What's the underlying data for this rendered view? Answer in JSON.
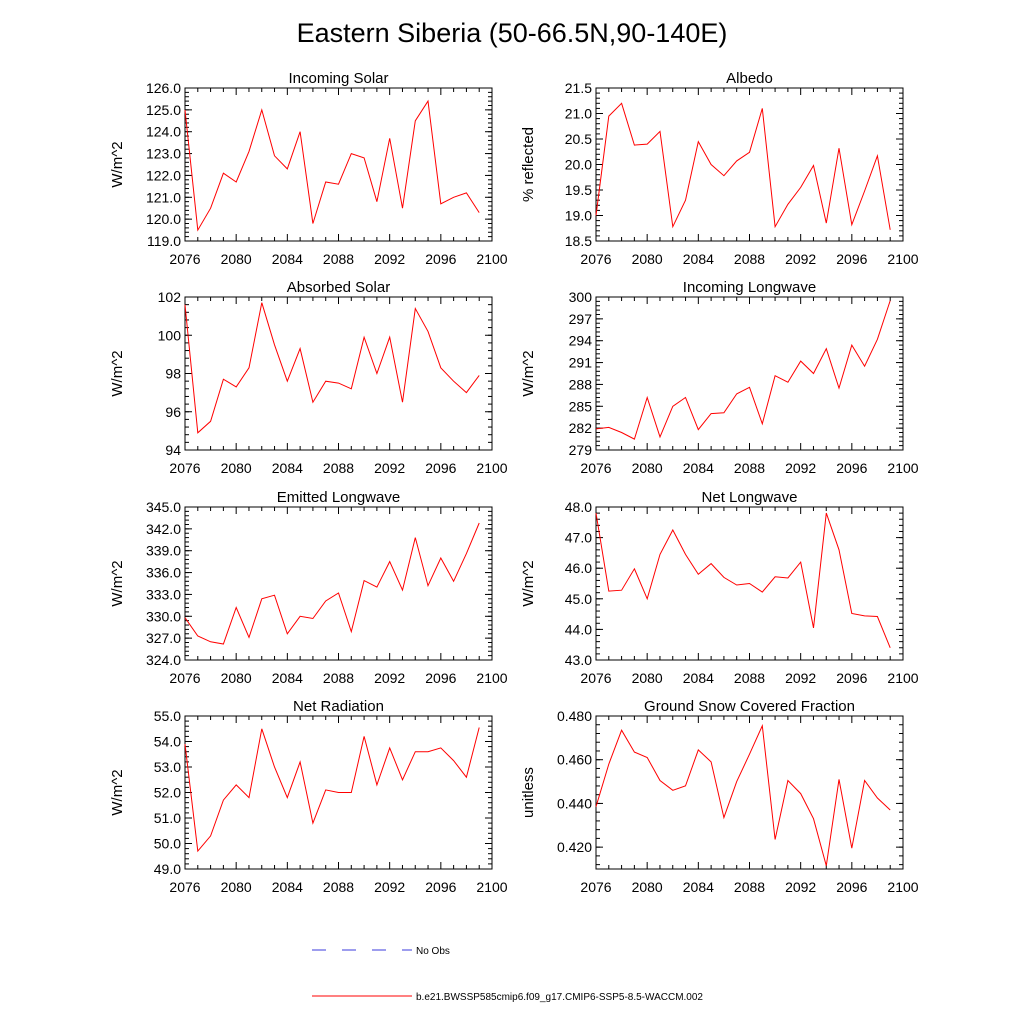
{
  "title": "Eastern Siberia (50-66.5N,90-140E)",
  "legend": {
    "entries": [
      {
        "label": "No Obs",
        "color": "#3b3bdc",
        "style": "dashed"
      },
      {
        "label": "b.e21.BWSSP585cmip6.f09_g17.CMIP6-SSP5-8.5-WACCM.002",
        "color": "#ff0000",
        "style": "solid"
      }
    ]
  },
  "chart_data": [
    {
      "type": "line",
      "title": "Incoming Solar",
      "ylabel": "W/m^2",
      "xlim": [
        2076,
        2100
      ],
      "ylim": [
        119.0,
        126.0
      ],
      "xticks": [
        "2076",
        "2080",
        "2084",
        "2088",
        "2092",
        "2096",
        "2100"
      ],
      "yticks": [
        "119.0",
        "120.0",
        "121.0",
        "122.0",
        "123.0",
        "124.0",
        "125.0",
        "126.0"
      ],
      "x": [
        2076,
        2077,
        2078,
        2079,
        2080,
        2081,
        2082,
        2083,
        2084,
        2085,
        2086,
        2087,
        2088,
        2089,
        2090,
        2091,
        2092,
        2093,
        2094,
        2095,
        2096,
        2097,
        2098,
        2099
      ],
      "series": [
        {
          "name": "b.e21.BWSSP585cmip6.f09_g17.CMIP6-SSP5-8.5-WACCM.002",
          "color": "#ff0000",
          "values": [
            125.0,
            119.5,
            120.5,
            122.1,
            121.7,
            123.1,
            125.0,
            122.9,
            122.3,
            124.0,
            119.8,
            121.7,
            121.6,
            123.0,
            122.8,
            120.8,
            123.7,
            120.5,
            124.5,
            125.4,
            120.7,
            121.0,
            121.2,
            120.3
          ]
        }
      ]
    },
    {
      "type": "line",
      "title": "Albedo",
      "ylabel": "% reflected",
      "xlim": [
        2076,
        2100
      ],
      "ylim": [
        18.5,
        21.5
      ],
      "xticks": [
        "2076",
        "2080",
        "2084",
        "2088",
        "2092",
        "2096",
        "2100"
      ],
      "yticks": [
        "18.5",
        "19.0",
        "19.5",
        "20.0",
        "20.5",
        "21.0",
        "21.5"
      ],
      "x": [
        2076,
        2077,
        2078,
        2079,
        2080,
        2081,
        2082,
        2083,
        2084,
        2085,
        2086,
        2087,
        2088,
        2089,
        2090,
        2091,
        2092,
        2093,
        2094,
        2095,
        2096,
        2097,
        2098,
        2099
      ],
      "series": [
        {
          "name": "b.e21.BWSSP585cmip6.f09_g17.CMIP6-SSP5-8.5-WACCM.002",
          "color": "#ff0000",
          "values": [
            19.0,
            20.95,
            21.2,
            20.38,
            20.4,
            20.65,
            18.78,
            19.3,
            20.45,
            20.0,
            19.78,
            20.07,
            20.24,
            21.1,
            18.78,
            19.22,
            19.55,
            19.98,
            18.85,
            20.32,
            18.82,
            19.48,
            20.17,
            18.72
          ]
        }
      ]
    },
    {
      "type": "line",
      "title": "Absorbed Solar",
      "ylabel": "W/m^2",
      "xlim": [
        2076,
        2100
      ],
      "ylim": [
        94,
        102
      ],
      "xticks": [
        "2076",
        "2080",
        "2084",
        "2088",
        "2092",
        "2096",
        "2100"
      ],
      "yticks": [
        "94",
        "96",
        "98",
        "100",
        "102"
      ],
      "x": [
        2076,
        2077,
        2078,
        2079,
        2080,
        2081,
        2082,
        2083,
        2084,
        2085,
        2086,
        2087,
        2088,
        2089,
        2090,
        2091,
        2092,
        2093,
        2094,
        2095,
        2096,
        2097,
        2098,
        2099
      ],
      "series": [
        {
          "name": "b.e21.BWSSP585cmip6.f09_g17.CMIP6-SSP5-8.5-WACCM.002",
          "color": "#ff0000",
          "values": [
            101.6,
            94.9,
            95.5,
            97.7,
            97.3,
            98.3,
            101.7,
            99.5,
            97.6,
            99.3,
            96.5,
            97.6,
            97.5,
            97.2,
            99.9,
            98.0,
            99.9,
            96.5,
            101.4,
            100.2,
            98.3,
            97.6,
            97.0,
            97.9
          ]
        }
      ]
    },
    {
      "type": "line",
      "title": "Incoming Longwave",
      "ylabel": "W/m^2",
      "xlim": [
        2076,
        2100
      ],
      "ylim": [
        279,
        300
      ],
      "xticks": [
        "2076",
        "2080",
        "2084",
        "2088",
        "2092",
        "2096",
        "2100"
      ],
      "yticks": [
        "279",
        "282",
        "285",
        "288",
        "291",
        "294",
        "297",
        "300"
      ],
      "x": [
        2076,
        2077,
        2078,
        2079,
        2080,
        2081,
        2082,
        2083,
        2084,
        2085,
        2086,
        2087,
        2088,
        2089,
        2090,
        2091,
        2092,
        2093,
        2094,
        2095,
        2096,
        2097,
        2098,
        2099
      ],
      "series": [
        {
          "name": "b.e21.BWSSP585cmip6.f09_g17.CMIP6-SSP5-8.5-WACCM.002",
          "color": "#ff0000",
          "values": [
            281.9,
            282.1,
            281.4,
            280.5,
            286.2,
            280.8,
            285.0,
            286.2,
            281.8,
            284.0,
            284.1,
            286.7,
            287.6,
            282.6,
            289.2,
            288.3,
            291.2,
            289.5,
            292.9,
            287.5,
            293.4,
            290.5,
            294.2,
            299.5
          ]
        }
      ]
    },
    {
      "type": "line",
      "title": "Emitted Longwave",
      "ylabel": "W/m^2",
      "xlim": [
        2076,
        2100
      ],
      "ylim": [
        324.0,
        345.0
      ],
      "xticks": [
        "2076",
        "2080",
        "2084",
        "2088",
        "2092",
        "2096",
        "2100"
      ],
      "yticks": [
        "324.0",
        "327.0",
        "330.0",
        "333.0",
        "336.0",
        "339.0",
        "342.0",
        "345.0"
      ],
      "x": [
        2076,
        2077,
        2078,
        2079,
        2080,
        2081,
        2082,
        2083,
        2084,
        2085,
        2086,
        2087,
        2088,
        2089,
        2090,
        2091,
        2092,
        2093,
        2094,
        2095,
        2096,
        2097,
        2098,
        2099
      ],
      "series": [
        {
          "name": "b.e21.BWSSP585cmip6.f09_g17.CMIP6-SSP5-8.5-WACCM.002",
          "color": "#ff0000",
          "values": [
            329.8,
            327.3,
            326.5,
            326.2,
            331.2,
            327.1,
            332.4,
            332.9,
            327.6,
            330.0,
            329.7,
            332.1,
            333.2,
            327.9,
            334.9,
            334.0,
            337.5,
            333.6,
            340.8,
            334.2,
            338.0,
            334.8,
            338.6,
            342.8
          ]
        }
      ]
    },
    {
      "type": "line",
      "title": "Net Longwave",
      "ylabel": "W/m^2",
      "xlim": [
        2076,
        2100
      ],
      "ylim": [
        43.0,
        48.0
      ],
      "xticks": [
        "2076",
        "2080",
        "2084",
        "2088",
        "2092",
        "2096",
        "2100"
      ],
      "yticks": [
        "43.0",
        "44.0",
        "45.0",
        "46.0",
        "47.0",
        "48.0"
      ],
      "x": [
        2076,
        2077,
        2078,
        2079,
        2080,
        2081,
        2082,
        2083,
        2084,
        2085,
        2086,
        2087,
        2088,
        2089,
        2090,
        2091,
        2092,
        2093,
        2094,
        2095,
        2096,
        2097,
        2098,
        2099
      ],
      "series": [
        {
          "name": "b.e21.BWSSP585cmip6.f09_g17.CMIP6-SSP5-8.5-WACCM.002",
          "color": "#ff0000",
          "values": [
            47.8,
            45.25,
            45.28,
            45.98,
            45.0,
            46.45,
            47.25,
            46.45,
            45.8,
            46.15,
            45.7,
            45.45,
            45.5,
            45.22,
            45.72,
            45.68,
            46.2,
            44.05,
            47.8,
            46.6,
            44.52,
            44.44,
            44.42,
            43.4
          ]
        }
      ]
    },
    {
      "type": "line",
      "title": "Net Radiation",
      "ylabel": "W/m^2",
      "xlim": [
        2076,
        2100
      ],
      "ylim": [
        49.0,
        55.0
      ],
      "xticks": [
        "2076",
        "2080",
        "2084",
        "2088",
        "2092",
        "2096",
        "2100"
      ],
      "yticks": [
        "49.0",
        "50.0",
        "51.0",
        "52.0",
        "53.0",
        "54.0",
        "55.0"
      ],
      "x": [
        2076,
        2077,
        2078,
        2079,
        2080,
        2081,
        2082,
        2083,
        2084,
        2085,
        2086,
        2087,
        2088,
        2089,
        2090,
        2091,
        2092,
        2093,
        2094,
        2095,
        2096,
        2097,
        2098,
        2099
      ],
      "series": [
        {
          "name": "b.e21.BWSSP585cmip6.f09_g17.CMIP6-SSP5-8.5-WACCM.002",
          "color": "#ff0000",
          "values": [
            53.9,
            49.7,
            50.3,
            51.7,
            52.3,
            51.8,
            54.5,
            53.0,
            51.8,
            53.2,
            50.8,
            52.1,
            52.0,
            52.0,
            54.2,
            52.3,
            53.75,
            52.5,
            53.6,
            53.6,
            53.75,
            53.25,
            52.6,
            54.55
          ]
        }
      ]
    },
    {
      "type": "line",
      "title": "Ground Snow Covered Fraction",
      "ylabel": "unitless",
      "xlim": [
        2076,
        2100
      ],
      "ylim": [
        0.41,
        0.48
      ],
      "xticks": [
        "2076",
        "2080",
        "2084",
        "2088",
        "2092",
        "2096",
        "2100"
      ],
      "yticks": [
        "0.420",
        "0.440",
        "0.460",
        "0.480"
      ],
      "x": [
        2076,
        2077,
        2078,
        2079,
        2080,
        2081,
        2082,
        2083,
        2084,
        2085,
        2086,
        2087,
        2088,
        2089,
        2090,
        2091,
        2092,
        2093,
        2094,
        2095,
        2096,
        2097,
        2098,
        2099
      ],
      "series": [
        {
          "name": "b.e21.BWSSP585cmip6.f09_g17.CMIP6-SSP5-8.5-WACCM.002",
          "color": "#ff0000",
          "values": [
            0.4385,
            0.458,
            0.4735,
            0.4635,
            0.461,
            0.4505,
            0.446,
            0.448,
            0.4645,
            0.459,
            0.4335,
            0.45,
            0.4625,
            0.4755,
            0.4235,
            0.4505,
            0.4445,
            0.433,
            0.4115,
            0.451,
            0.4195,
            0.4505,
            0.4425,
            0.437
          ]
        }
      ]
    }
  ]
}
